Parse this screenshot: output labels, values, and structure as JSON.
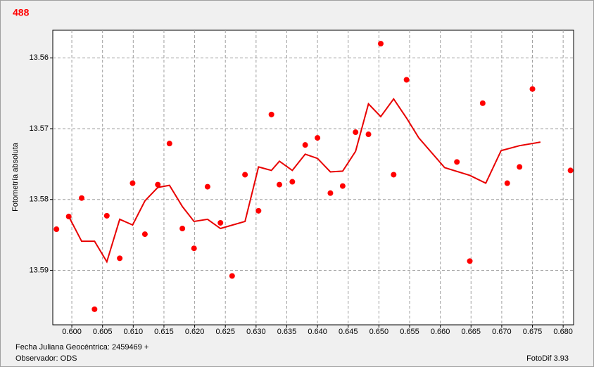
{
  "chart_data": {
    "type": "scatter",
    "title": "488",
    "y_label": "Fotometría absoluta",
    "x_label": "Fecha Juliana Geocéntrica: 2459469 +",
    "annotations": [
      "Observador: ODS",
      "FotoDif 3.93"
    ],
    "xlim": [
      0.5969,
      0.6817
    ],
    "ylim": [
      13.5977,
      13.5561
    ],
    "xticks": [
      {
        "value": 0.6,
        "label": "0.600"
      },
      0.605,
      {
        "value": 0.61,
        "label": "0.610"
      },
      0.615,
      {
        "value": 0.62,
        "label": "0.620"
      },
      0.625,
      {
        "value": 0.63,
        "label": "0.630"
      },
      0.635,
      {
        "value": 0.64,
        "label": "0.640"
      },
      0.645,
      {
        "value": 0.65,
        "label": "0.650"
      },
      0.655,
      {
        "value": 0.66,
        "label": "0.660"
      },
      0.665,
      {
        "value": 0.67,
        "label": "0.670"
      },
      0.675,
      {
        "value": 0.68,
        "label": "0.680"
      }
    ],
    "yticks": [
      13.56,
      13.57,
      13.58,
      13.59
    ],
    "grid": true,
    "series": [
      {
        "style": "markers",
        "color": "#ff0000",
        "x": [
          0.5975,
          0.5995,
          0.6016,
          0.6037,
          0.6057,
          0.6078,
          0.6099,
          0.6119,
          0.614,
          0.6159,
          0.618,
          0.6199,
          0.6221,
          0.6242,
          0.6261,
          0.6282,
          0.6304,
          0.6325,
          0.6338,
          0.6359,
          0.638,
          0.64,
          0.6421,
          0.6441,
          0.6462,
          0.6483,
          0.6503,
          0.6524,
          0.6545,
          0.6627,
          0.6648,
          0.6669,
          0.6709,
          0.6729,
          0.675,
          0.6812
        ],
        "values": [
          13.5842,
          13.5824,
          13.5798,
          13.5955,
          13.5823,
          13.5883,
          13.5777,
          13.5849,
          13.5779,
          13.5721,
          13.5841,
          13.5869,
          13.5782,
          13.5833,
          13.5908,
          13.5765,
          13.5816,
          13.568,
          13.5779,
          13.5775,
          13.5723,
          13.5713,
          13.5791,
          13.5781,
          13.5705,
          13.5708,
          13.558,
          13.5765,
          13.5631,
          13.5747,
          13.5887,
          13.5664,
          13.5777,
          13.5754,
          13.5644,
          13.5759
        ]
      },
      {
        "style": "line",
        "color": "#e80000",
        "x": [
          0.5995,
          0.6016,
          0.6037,
          0.6057,
          0.6078,
          0.6099,
          0.6119,
          0.614,
          0.6159,
          0.618,
          0.6199,
          0.6221,
          0.6242,
          0.6282,
          0.6304,
          0.6325,
          0.6338,
          0.6359,
          0.638,
          0.64,
          0.6421,
          0.6441,
          0.6462,
          0.6483,
          0.6503,
          0.6524,
          0.6545,
          0.6565,
          0.6607,
          0.6648,
          0.6674,
          0.6699,
          0.6729,
          0.6763
        ],
        "values": [
          13.5824,
          13.5859,
          13.5859,
          13.5888,
          13.5828,
          13.5836,
          13.5802,
          13.5783,
          13.578,
          13.581,
          13.5831,
          13.5828,
          13.5841,
          13.5831,
          13.5754,
          13.5759,
          13.5746,
          13.5759,
          13.5736,
          13.5742,
          13.5761,
          13.576,
          13.5732,
          13.5665,
          13.5683,
          13.5658,
          13.5685,
          13.5713,
          13.5755,
          13.5766,
          13.5777,
          13.5731,
          13.5724,
          13.5719
        ]
      }
    ]
  }
}
